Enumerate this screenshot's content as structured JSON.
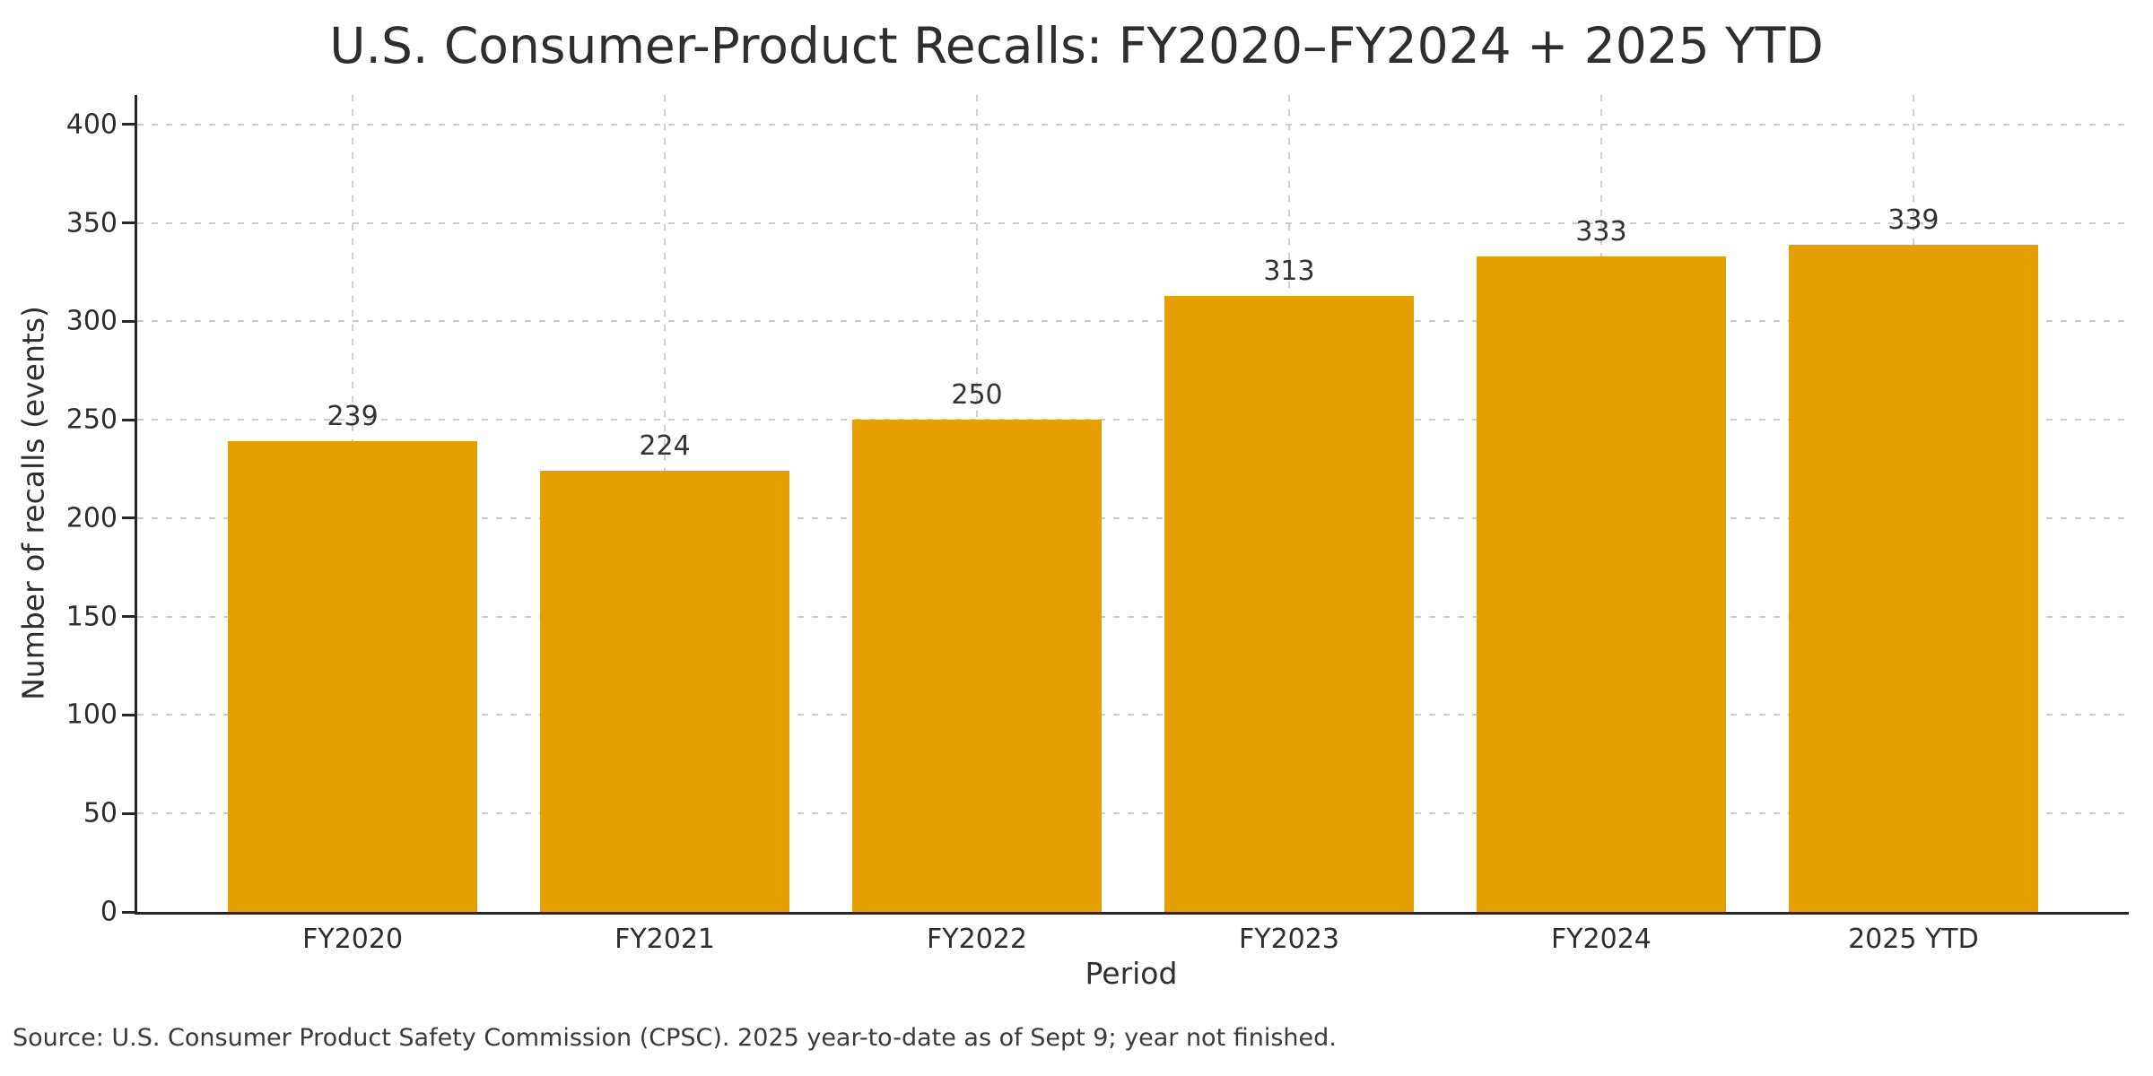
{
  "chart_data": {
    "type": "bar",
    "title": "U.S. Consumer-Product Recalls: FY2020–FY2024 + 2025 YTD",
    "categories": [
      "FY2020",
      "FY2021",
      "FY2022",
      "FY2023",
      "FY2024",
      "2025 YTD"
    ],
    "values": [
      239,
      224,
      250,
      313,
      333,
      339
    ],
    "bar_value_labels": [
      "239",
      "224",
      "250",
      "313",
      "333",
      "339"
    ],
    "xlabel": "Period",
    "ylabel": "Number of recalls (events)",
    "ylim": [
      0,
      415
    ],
    "yticks": [
      0,
      50,
      100,
      150,
      200,
      250,
      300,
      350,
      400
    ],
    "grid": {
      "horizontal": true,
      "vertical": true,
      "style": "dashed"
    },
    "legend": "none",
    "source_note": "Source: U.S. Consumer Product Safety Commission (CPSC). 2025 year-to-date as of Sept 9; year not finished."
  },
  "colors": {
    "bar": "#E69F00",
    "grid": "#cccccc",
    "spine": "#262626",
    "text": "#2e2e2e",
    "background": "#ffffff"
  }
}
